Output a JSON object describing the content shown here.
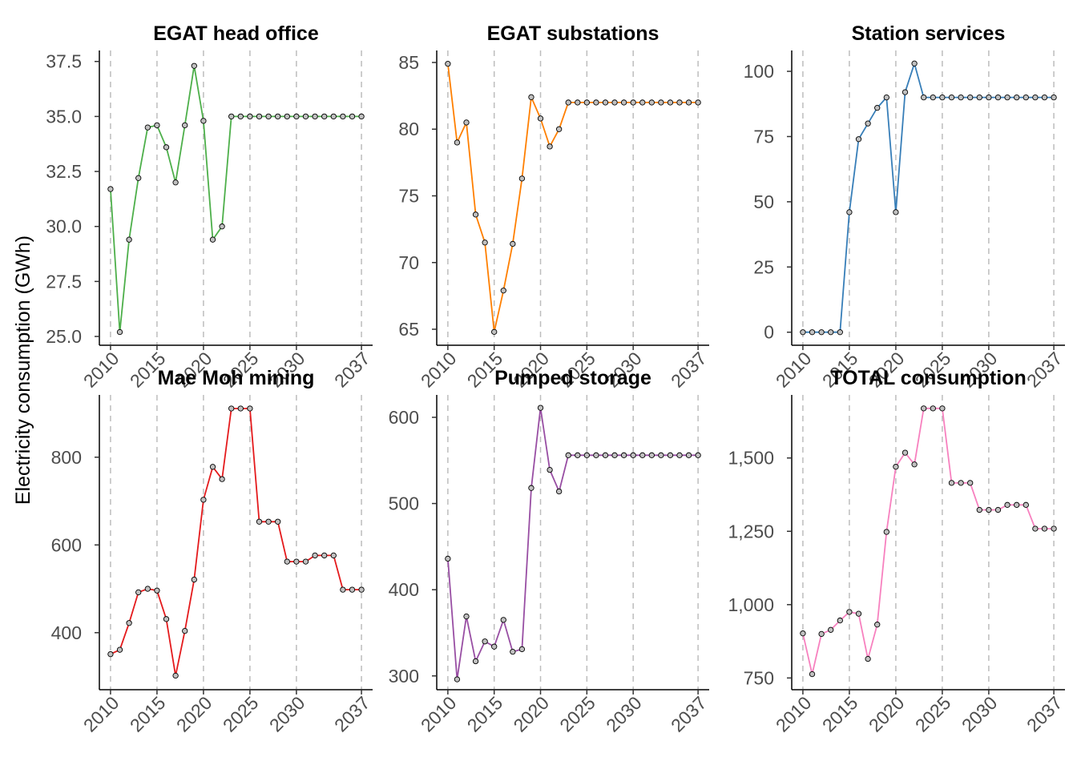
{
  "y_axis_label": "Electricity consumption (GWh)",
  "chart_data": [
    {
      "type": "line",
      "title": "EGAT head office",
      "color": "#4DAF4A",
      "x_ticks": [
        2010,
        2015,
        2020,
        2025,
        2030,
        2037
      ],
      "y_ticks": [
        25.0,
        27.5,
        30.0,
        32.5,
        35.0,
        37.5
      ],
      "y_tick_labels": [
        "25.0",
        "27.5",
        "30.0",
        "32.5",
        "35.0",
        "37.5"
      ],
      "ylim": [
        24.6,
        38.0
      ],
      "xlim": [
        2008.8,
        2038.2
      ],
      "x": [
        2010,
        2011,
        2012,
        2013,
        2014,
        2015,
        2016,
        2017,
        2018,
        2019,
        2020,
        2021,
        2022,
        2023,
        2024,
        2025,
        2026,
        2027,
        2028,
        2029,
        2030,
        2031,
        2032,
        2033,
        2034,
        2035,
        2036,
        2037
      ],
      "values": [
        31.7,
        25.2,
        29.4,
        32.2,
        34.5,
        34.6,
        33.6,
        32.0,
        34.6,
        37.3,
        34.8,
        29.4,
        30.0,
        35.0,
        35.0,
        35.0,
        35.0,
        35.0,
        35.0,
        35.0,
        35.0,
        35.0,
        35.0,
        35.0,
        35.0,
        35.0,
        35.0,
        35.0
      ]
    },
    {
      "type": "line",
      "title": "EGAT substations",
      "color": "#FF7F00",
      "x_ticks": [
        2010,
        2015,
        2020,
        2025,
        2030,
        2037
      ],
      "y_ticks": [
        65,
        70,
        75,
        80,
        85
      ],
      "y_tick_labels": [
        "65",
        "70",
        "75",
        "80",
        "85"
      ],
      "ylim": [
        63.8,
        85.9
      ],
      "xlim": [
        2008.8,
        2038.2
      ],
      "x": [
        2010,
        2011,
        2012,
        2013,
        2014,
        2015,
        2016,
        2017,
        2018,
        2019,
        2020,
        2021,
        2022,
        2023,
        2024,
        2025,
        2026,
        2027,
        2028,
        2029,
        2030,
        2031,
        2032,
        2033,
        2034,
        2035,
        2036,
        2037
      ],
      "values": [
        84.9,
        79.0,
        80.5,
        73.6,
        71.5,
        64.8,
        67.9,
        71.4,
        76.3,
        82.4,
        80.8,
        78.7,
        80.0,
        82.0,
        82.0,
        82.0,
        82.0,
        82.0,
        82.0,
        82.0,
        82.0,
        82.0,
        82.0,
        82.0,
        82.0,
        82.0,
        82.0,
        82.0
      ]
    },
    {
      "type": "line",
      "title": "Station services",
      "color": "#377EB8",
      "x_ticks": [
        2010,
        2015,
        2020,
        2025,
        2030,
        2037
      ],
      "y_ticks": [
        0,
        25,
        50,
        75,
        100
      ],
      "y_tick_labels": [
        "0",
        "25",
        "50",
        "75",
        "100"
      ],
      "ylim": [
        -5,
        108
      ],
      "xlim": [
        2008.8,
        2038.2
      ],
      "x": [
        2010,
        2011,
        2012,
        2013,
        2014,
        2015,
        2016,
        2017,
        2018,
        2019,
        2020,
        2021,
        2022,
        2023,
        2024,
        2025,
        2026,
        2027,
        2028,
        2029,
        2030,
        2031,
        2032,
        2033,
        2034,
        2035,
        2036,
        2037
      ],
      "values": [
        0,
        0,
        0,
        0,
        0,
        46,
        74,
        80,
        86,
        90,
        46,
        92,
        103,
        90,
        90,
        90,
        90,
        90,
        90,
        90,
        90,
        90,
        90,
        90,
        90,
        90,
        90,
        90
      ]
    },
    {
      "type": "line",
      "title": "Mae Moh mining",
      "color": "#E41A1C",
      "x_ticks": [
        2010,
        2015,
        2020,
        2025,
        2030,
        2037
      ],
      "y_ticks": [
        400,
        600,
        800
      ],
      "y_tick_labels": [
        "400",
        "600",
        "800"
      ],
      "ylim": [
        270,
        942
      ],
      "xlim": [
        2008.8,
        2038.2
      ],
      "x": [
        2010,
        2011,
        2012,
        2013,
        2014,
        2015,
        2016,
        2017,
        2018,
        2019,
        2020,
        2021,
        2022,
        2023,
        2024,
        2025,
        2026,
        2027,
        2028,
        2029,
        2030,
        2031,
        2032,
        2033,
        2034,
        2035,
        2036,
        2037
      ],
      "values": [
        351,
        361,
        422,
        492,
        500,
        496,
        431,
        302,
        404,
        521,
        703,
        778,
        750,
        911,
        911,
        911,
        653,
        653,
        653,
        562,
        562,
        562,
        576,
        576,
        576,
        498,
        498,
        498
      ]
    },
    {
      "type": "line",
      "title": "Pumped storage",
      "color": "#984EA3",
      "x_ticks": [
        2010,
        2015,
        2020,
        2025,
        2030,
        2037
      ],
      "y_ticks": [
        300,
        400,
        500,
        600
      ],
      "y_tick_labels": [
        "300",
        "400",
        "500",
        "600"
      ],
      "ylim": [
        284,
        626
      ],
      "xlim": [
        2008.8,
        2038.2
      ],
      "x": [
        2010,
        2011,
        2012,
        2013,
        2014,
        2015,
        2016,
        2017,
        2018,
        2019,
        2020,
        2021,
        2022,
        2023,
        2024,
        2025,
        2026,
        2027,
        2028,
        2029,
        2030,
        2031,
        2032,
        2033,
        2034,
        2035,
        2036,
        2037
      ],
      "values": [
        436,
        296,
        369,
        317,
        340,
        334,
        365,
        328,
        331,
        518,
        611,
        539,
        514,
        556,
        556,
        556,
        556,
        556,
        556,
        556,
        556,
        556,
        556,
        556,
        556,
        556,
        556,
        556
      ]
    },
    {
      "type": "line",
      "title": "TOTAL consumption",
      "color": "#F781BF",
      "x_ticks": [
        2010,
        2015,
        2020,
        2025,
        2030,
        2037
      ],
      "y_ticks": [
        750,
        1000,
        1250,
        1500
      ],
      "y_tick_labels": [
        "750",
        "1,000",
        "1,250",
        "1,500"
      ],
      "ylim": [
        710,
        1715
      ],
      "xlim": [
        2008.8,
        2038.2
      ],
      "x": [
        2010,
        2011,
        2012,
        2013,
        2014,
        2015,
        2016,
        2017,
        2018,
        2019,
        2020,
        2021,
        2022,
        2023,
        2024,
        2025,
        2026,
        2027,
        2028,
        2029,
        2030,
        2031,
        2032,
        2033,
        2034,
        2035,
        2036,
        2037
      ],
      "values": [
        902,
        763,
        900,
        914,
        946,
        975,
        969,
        815,
        932,
        1248,
        1470,
        1518,
        1478,
        1669,
        1669,
        1669,
        1415,
        1415,
        1415,
        1323,
        1323,
        1323,
        1340,
        1340,
        1340,
        1259,
        1259,
        1259
      ]
    }
  ]
}
